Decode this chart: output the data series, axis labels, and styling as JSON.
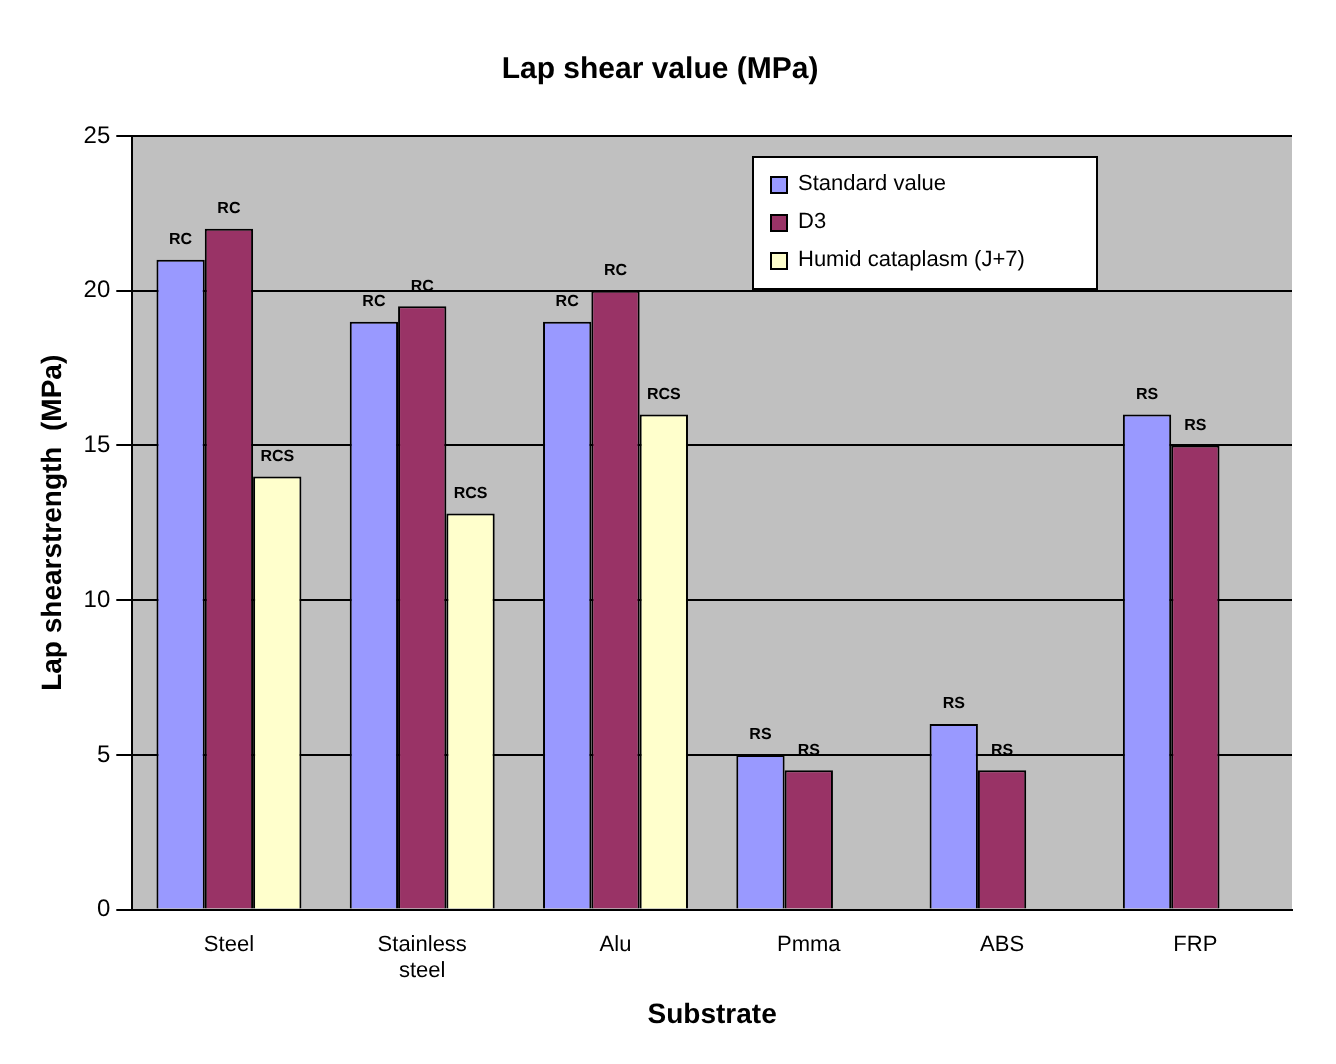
{
  "chart_data": {
    "type": "bar",
    "title": "Lap shear value (MPa)",
    "xlabel": "Substrate",
    "ylabel": "Lap shearstrength  (MPa)",
    "categories": [
      "Steel",
      "Stainless steel",
      "Alu",
      "Pmma",
      "ABS",
      "FRP"
    ],
    "series": [
      {
        "name": "Standard value",
        "color": "#9999ff",
        "values": [
          21,
          19,
          19,
          5,
          6,
          16
        ],
        "value_labels": [
          "RC",
          "RC",
          "RC",
          "RS",
          "RS",
          "RS"
        ]
      },
      {
        "name": "D3",
        "color": "#993366",
        "values": [
          22,
          19.5,
          20,
          4.5,
          4.5,
          15
        ],
        "value_labels": [
          "RC",
          "RC",
          "RC",
          "RS",
          "RS",
          "RS"
        ]
      },
      {
        "name": "Humid cataplasm (J+7)",
        "color": "#ffffcc",
        "values": [
          14,
          12.8,
          16,
          null,
          null,
          null
        ],
        "value_labels": [
          "RCS",
          "RCS",
          "RCS",
          null,
          null,
          null
        ]
      }
    ],
    "ylim": [
      0,
      25
    ],
    "yticks": [
      0,
      5,
      10,
      15,
      20,
      25
    ],
    "grid": "y",
    "legend": "top right"
  }
}
